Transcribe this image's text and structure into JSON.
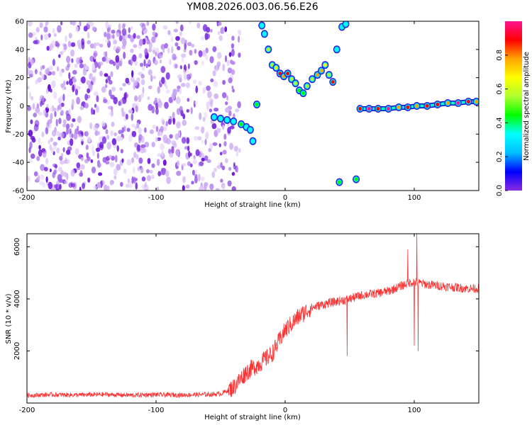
{
  "title": "YM08.2026.003.06.56.E26",
  "chart_data": [
    {
      "type": "heatmap",
      "xlabel": "Height of straight line (km)",
      "ylabel": "Frequency (Hz)",
      "xlim": [
        -200,
        150
      ],
      "ylim": [
        -60,
        60
      ],
      "xticks": [
        -200,
        -100,
        0,
        100
      ],
      "yticks": [
        -60,
        -40,
        -20,
        0,
        20,
        40,
        60
      ],
      "noise_region": {
        "x_range": [
          -200,
          -35
        ],
        "y_range": [
          -60,
          60
        ]
      },
      "signal_track": [
        {
          "x": -55,
          "y": -8,
          "v": 0.3
        },
        {
          "x": -50,
          "y": -9,
          "v": 0.3
        },
        {
          "x": -45,
          "y": -10,
          "v": 0.35
        },
        {
          "x": -40,
          "y": -11,
          "v": 0.3
        },
        {
          "x": -34,
          "y": -13,
          "v": 0.4
        },
        {
          "x": -30,
          "y": -15,
          "v": 0.35
        },
        {
          "x": -27,
          "y": -17,
          "v": 0.3
        },
        {
          "x": -25,
          "y": -25,
          "v": 0.3
        },
        {
          "x": -22,
          "y": 1,
          "v": 0.4
        },
        {
          "x": -18,
          "y": 57,
          "v": 0.3
        },
        {
          "x": -16,
          "y": 51,
          "v": 0.35
        },
        {
          "x": -13,
          "y": 40,
          "v": 0.5
        },
        {
          "x": -10,
          "y": 29,
          "v": 0.6
        },
        {
          "x": -7,
          "y": 27,
          "v": 0.7
        },
        {
          "x": -4,
          "y": 23,
          "v": 0.85
        },
        {
          "x": -1,
          "y": 21,
          "v": 0.75
        },
        {
          "x": 2,
          "y": 23,
          "v": 0.9
        },
        {
          "x": 5,
          "y": 19,
          "v": 0.6
        },
        {
          "x": 8,
          "y": 16,
          "v": 0.5
        },
        {
          "x": 11,
          "y": 11,
          "v": 0.45
        },
        {
          "x": 14,
          "y": 9,
          "v": 0.4
        },
        {
          "x": 17,
          "y": 14,
          "v": 0.5
        },
        {
          "x": 21,
          "y": 19,
          "v": 0.6
        },
        {
          "x": 25,
          "y": 22,
          "v": 0.75
        },
        {
          "x": 28,
          "y": 25,
          "v": 0.8
        },
        {
          "x": 31,
          "y": 29,
          "v": 0.7
        },
        {
          "x": 34,
          "y": 22,
          "v": 0.6
        },
        {
          "x": 37,
          "y": 17,
          "v": 0.9
        },
        {
          "x": 40,
          "y": 40,
          "v": 0.35
        },
        {
          "x": 42,
          "y": -54,
          "v": 0.4
        },
        {
          "x": 44,
          "y": 56,
          "v": 0.35
        },
        {
          "x": 47,
          "y": 58,
          "v": 0.3
        },
        {
          "x": 55,
          "y": -52,
          "v": 0.4
        },
        {
          "x": 58,
          "y": -2,
          "v": 0.9
        },
        {
          "x": 65,
          "y": -2,
          "v": 0.95
        },
        {
          "x": 72,
          "y": -2,
          "v": 0.9
        },
        {
          "x": 80,
          "y": -2,
          "v": 0.95
        },
        {
          "x": 88,
          "y": -1,
          "v": 0.8
        },
        {
          "x": 95,
          "y": -1,
          "v": 0.85
        },
        {
          "x": 102,
          "y": 0,
          "v": 0.8
        },
        {
          "x": 110,
          "y": 0,
          "v": 0.9
        },
        {
          "x": 118,
          "y": 1,
          "v": 0.85
        },
        {
          "x": 126,
          "y": 2,
          "v": 0.8
        },
        {
          "x": 134,
          "y": 2,
          "v": 0.95
        },
        {
          "x": 142,
          "y": 3,
          "v": 0.9
        },
        {
          "x": 148,
          "y": 3,
          "v": 0.8
        }
      ],
      "colorbar": {
        "label": "Normalized spectral amplitude",
        "range": [
          0,
          1
        ],
        "ticks": [
          "0.0",
          "0.2",
          "0.4",
          "0.6",
          "0.8"
        ],
        "colors": [
          "#8a2be2",
          "#0000ff",
          "#00bfff",
          "#00ffff",
          "#00ff00",
          "#adff2f",
          "#ffff00",
          "#ffa500",
          "#ff0000",
          "#ff1493"
        ]
      }
    },
    {
      "type": "line",
      "xlabel": "Height of straight line (km)",
      "ylabel": "SNR (10 * v/v)",
      "xlim": [
        -200,
        150
      ],
      "ylim": [
        0,
        6500
      ],
      "xticks": [
        -200,
        -100,
        0,
        100
      ],
      "yticks": [
        2000,
        4000,
        6000
      ],
      "color": "#ff3030",
      "x": [
        -200,
        -180,
        -160,
        -140,
        -120,
        -100,
        -80,
        -60,
        -50,
        -40,
        -35,
        -30,
        -20,
        -10,
        0,
        10,
        20,
        30,
        40,
        50,
        60,
        70,
        80,
        90,
        95,
        100,
        105,
        110,
        120,
        130,
        140,
        150
      ],
      "y": [
        300,
        320,
        310,
        330,
        300,
        320,
        310,
        330,
        350,
        600,
        900,
        1200,
        1500,
        1900,
        2800,
        3300,
        3650,
        3800,
        3900,
        4000,
        4150,
        4200,
        4300,
        4500,
        4600,
        4650,
        4600,
        4550,
        4500,
        4450,
        4400,
        4400
      ],
      "spikes": [
        {
          "x": 48,
          "y": 1800
        },
        {
          "x": 95,
          "y": 5900
        },
        {
          "x": 100,
          "y": 2200
        },
        {
          "x": 102,
          "y": 6500
        },
        {
          "x": 103,
          "y": 2000
        }
      ]
    }
  ]
}
